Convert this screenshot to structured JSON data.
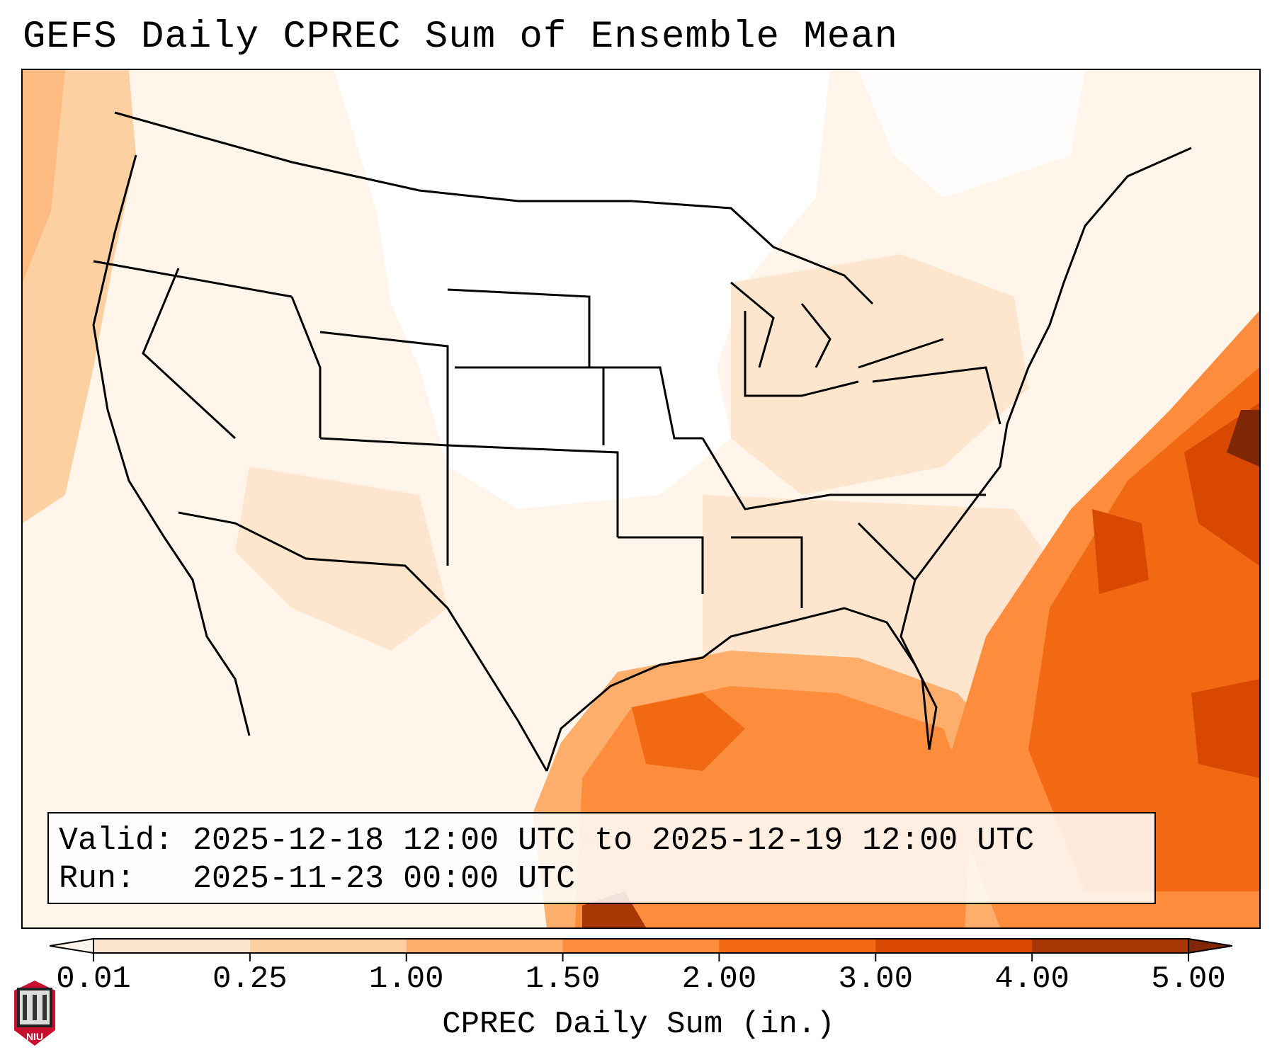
{
  "title": "GEFS Daily CPREC Sum of Ensemble Mean",
  "info": {
    "valid_label": "Valid:",
    "valid_value": "2025-12-18 12:00 UTC to 2025-12-19 12:00 UTC",
    "run_label": "Run:",
    "run_value": "2025-11-23 00:00 UTC"
  },
  "colorbar": {
    "label": "CPREC Daily Sum (in.)",
    "ticks": [
      "0.01",
      "0.25",
      "1.00",
      "1.50",
      "2.00",
      "3.00",
      "4.00",
      "5.00"
    ],
    "colors": [
      "#fff5eb",
      "#fee6ce",
      "#fdd0a2",
      "#fdae6b",
      "#fd8d3c",
      "#f16913",
      "#d94801",
      "#a63603",
      "#7f2704"
    ],
    "extend": "both"
  },
  "map": {
    "projection": "Lambert conformal",
    "region": "Continental United States, northern Mexico, Gulf of Mexico, western Atlantic",
    "features": [
      "coastlines",
      "state borders",
      "country borders"
    ],
    "precip_regions": [
      {
        "area": "Atlantic east of Carolinas",
        "level": "3.00-5.00"
      },
      {
        "area": "Gulf of Mexico",
        "level": "1.50-3.00"
      },
      {
        "area": "Pacific off Oregon/Washington",
        "level": "0.25-1.00"
      },
      {
        "area": "Interior US",
        "level": "0.01-0.25"
      }
    ]
  },
  "logo": {
    "text": "NIU"
  }
}
